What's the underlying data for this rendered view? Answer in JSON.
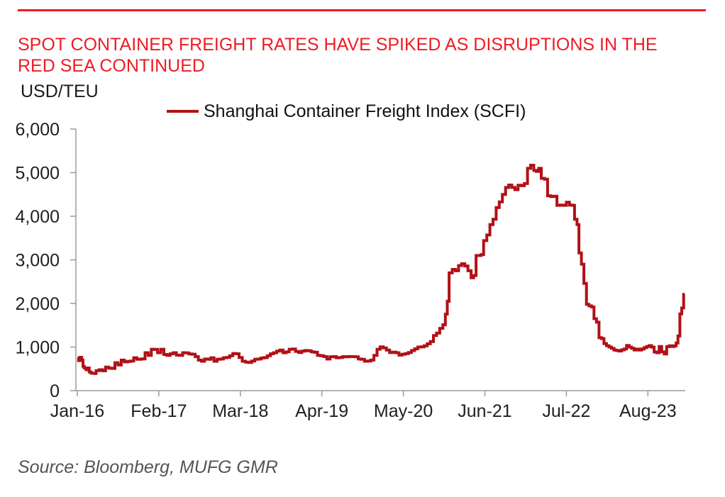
{
  "page": {
    "title": "SPOT CONTAINER FREIGHT RATES HAVE SPIKED AS DISRUPTIONS IN THE RED SEA CONTINUED",
    "unit_label": "USD/TEU",
    "source": "Source: Bloomberg, MUFG GMR",
    "colors": {
      "accent_red": "#ED1C24",
      "line_red": "#B01117",
      "axis_gray": "#9B9B9B",
      "tick_text": "#1F1F1F"
    }
  },
  "legend": {
    "label": "Shanghai Container Freight Index (SCFI)"
  },
  "chart_data": {
    "type": "line",
    "title": "Shanghai Container Freight Index (SCFI)",
    "xlabel": "",
    "ylabel": "USD/TEU",
    "ylim": [
      0,
      6000
    ],
    "grid": false,
    "legend_position": "top",
    "line_style": "step-after",
    "y_ticks": [
      0,
      1000,
      2000,
      3000,
      4000,
      5000,
      6000
    ],
    "y_tick_labels": [
      "0",
      "1,000",
      "2,000",
      "3,000",
      "4,000",
      "5,000",
      "6,000"
    ],
    "x_tick_labels": [
      "Jan-16",
      "Feb-17",
      "Mar-18",
      "Apr-19",
      "May-20",
      "Jun-21",
      "Jul-22",
      "Aug-23"
    ],
    "x_tick_months": [
      0,
      13,
      26,
      39,
      52,
      65,
      78,
      91
    ],
    "x_unit": "months since Jan-2016",
    "x_range_months": [
      0,
      97.5
    ],
    "series": [
      {
        "name": "Shanghai Container Freight Index (SCFI)",
        "points": [
          [
            0,
            745
          ],
          [
            0.2,
            690
          ],
          [
            0.4,
            765
          ],
          [
            0.7,
            700
          ],
          [
            0.9,
            560
          ],
          [
            1.1,
            520
          ],
          [
            1.4,
            480
          ],
          [
            1.7,
            520
          ],
          [
            1.9,
            430
          ],
          [
            2.2,
            400
          ],
          [
            2.7,
            395
          ],
          [
            3,
            460
          ],
          [
            3.5,
            480
          ],
          [
            4,
            455
          ],
          [
            4.5,
            540
          ],
          [
            5,
            515
          ],
          [
            5.5,
            510
          ],
          [
            6,
            640
          ],
          [
            6.5,
            590
          ],
          [
            7,
            700
          ],
          [
            7.5,
            660
          ],
          [
            8,
            670
          ],
          [
            8.5,
            678
          ],
          [
            9,
            755
          ],
          [
            9.5,
            720
          ],
          [
            10.2,
            728
          ],
          [
            10.8,
            870
          ],
          [
            11.3,
            810
          ],
          [
            11.8,
            950
          ],
          [
            12.3,
            945
          ],
          [
            12.8,
            870
          ],
          [
            13.3,
            950
          ],
          [
            13.8,
            830
          ],
          [
            14.3,
            810
          ],
          [
            14.8,
            845
          ],
          [
            15.3,
            870
          ],
          [
            15.8,
            815
          ],
          [
            16.3,
            810
          ],
          [
            16.8,
            870
          ],
          [
            17.3,
            865
          ],
          [
            17.8,
            840
          ],
          [
            18.3,
            835
          ],
          [
            18.8,
            780
          ],
          [
            19.3,
            700
          ],
          [
            19.8,
            675
          ],
          [
            20.3,
            725
          ],
          [
            20.8,
            720
          ],
          [
            21.3,
            755
          ],
          [
            21.8,
            675
          ],
          [
            22.3,
            720
          ],
          [
            22.8,
            725
          ],
          [
            23.3,
            755
          ],
          [
            23.8,
            762
          ],
          [
            24.3,
            800
          ],
          [
            24.8,
            852
          ],
          [
            25.3,
            845
          ],
          [
            25.8,
            760
          ],
          [
            26.3,
            675
          ],
          [
            26.8,
            655
          ],
          [
            27.3,
            645
          ],
          [
            27.8,
            680
          ],
          [
            28.3,
            720
          ],
          [
            28.8,
            726
          ],
          [
            29.3,
            750
          ],
          [
            29.8,
            758
          ],
          [
            30.3,
            800
          ],
          [
            30.8,
            845
          ],
          [
            31.3,
            870
          ],
          [
            31.8,
            905
          ],
          [
            32.3,
            930
          ],
          [
            32.8,
            870
          ],
          [
            33.3,
            890
          ],
          [
            33.8,
            950
          ],
          [
            34.3,
            955
          ],
          [
            34.8,
            900
          ],
          [
            35.3,
            875
          ],
          [
            35.8,
            905
          ],
          [
            36.3,
            920
          ],
          [
            36.8,
            915
          ],
          [
            37.3,
            890
          ],
          [
            37.8,
            880
          ],
          [
            38.3,
            810
          ],
          [
            38.8,
            800
          ],
          [
            39.3,
            780
          ],
          [
            39.8,
            725
          ],
          [
            40.3,
            775
          ],
          [
            40.8,
            780
          ],
          [
            41.3,
            755
          ],
          [
            41.8,
            760
          ],
          [
            42.3,
            780
          ],
          [
            42.8,
            775
          ],
          [
            43.3,
            782
          ],
          [
            43.8,
            780
          ],
          [
            44.3,
            775
          ],
          [
            44.8,
            725
          ],
          [
            45.3,
            720
          ],
          [
            45.8,
            675
          ],
          [
            46.3,
            680
          ],
          [
            46.8,
            700
          ],
          [
            47.3,
            810
          ],
          [
            47.8,
            950
          ],
          [
            48.3,
            1005
          ],
          [
            48.8,
            980
          ],
          [
            49.3,
            930
          ],
          [
            49.8,
            875
          ],
          [
            50.3,
            885
          ],
          [
            50.8,
            870
          ],
          [
            51.3,
            815
          ],
          [
            51.8,
            835
          ],
          [
            52.3,
            850
          ],
          [
            52.8,
            875
          ],
          [
            53.3,
            920
          ],
          [
            53.8,
            960
          ],
          [
            54.3,
            1000
          ],
          [
            54.8,
            1005
          ],
          [
            55.3,
            1030
          ],
          [
            55.8,
            1075
          ],
          [
            56.3,
            1125
          ],
          [
            56.8,
            1265
          ],
          [
            57.3,
            1320
          ],
          [
            57.8,
            1430
          ],
          [
            58.3,
            1510
          ],
          [
            58.7,
            1755
          ],
          [
            59,
            2050
          ],
          [
            59.3,
            2700
          ],
          [
            59.8,
            2780
          ],
          [
            60.3,
            2750
          ],
          [
            60.8,
            2870
          ],
          [
            61.3,
            2910
          ],
          [
            61.8,
            2860
          ],
          [
            62.3,
            2750
          ],
          [
            62.8,
            2590
          ],
          [
            63.2,
            2640
          ],
          [
            63.6,
            3100
          ],
          [
            64.4,
            3120
          ],
          [
            64.8,
            3440
          ],
          [
            65.3,
            3570
          ],
          [
            65.8,
            3810
          ],
          [
            66.3,
            3930
          ],
          [
            66.8,
            4200
          ],
          [
            67.3,
            4330
          ],
          [
            67.8,
            4500
          ],
          [
            68.3,
            4660
          ],
          [
            68.8,
            4715
          ],
          [
            69.3,
            4660
          ],
          [
            69.8,
            4610
          ],
          [
            70.3,
            4710
          ],
          [
            70.8,
            4700
          ],
          [
            71.3,
            4750
          ],
          [
            71.8,
            5100
          ],
          [
            72.3,
            5170
          ],
          [
            72.8,
            5050
          ],
          [
            73.2,
            5030
          ],
          [
            73.6,
            5100
          ],
          [
            74,
            4870
          ],
          [
            74.5,
            4850
          ],
          [
            75,
            4470
          ],
          [
            75.5,
            4450
          ],
          [
            76,
            4460
          ],
          [
            76.5,
            4250
          ],
          [
            77,
            4255
          ],
          [
            77.5,
            4250
          ],
          [
            78,
            4320
          ],
          [
            78.5,
            4255
          ],
          [
            79,
            4250
          ],
          [
            79.3,
            3930
          ],
          [
            79.7,
            3810
          ],
          [
            80,
            3160
          ],
          [
            80.4,
            2900
          ],
          [
            80.8,
            2460
          ],
          [
            81.2,
            1980
          ],
          [
            81.6,
            1945
          ],
          [
            82,
            1920
          ],
          [
            82.4,
            1650
          ],
          [
            82.8,
            1570
          ],
          [
            83.2,
            1215
          ],
          [
            83.6,
            1195
          ],
          [
            84,
            1080
          ],
          [
            84.4,
            1031
          ],
          [
            84.8,
            1000
          ],
          [
            85.2,
            969
          ],
          [
            85.6,
            931
          ],
          [
            86,
            920
          ],
          [
            86.4,
            909
          ],
          [
            86.8,
            935
          ],
          [
            87.2,
            956
          ],
          [
            87.6,
            1037
          ],
          [
            88,
            1000
          ],
          [
            88.4,
            972
          ],
          [
            88.8,
            934
          ],
          [
            89.2,
            953
          ],
          [
            89.6,
            931
          ],
          [
            90,
            955
          ],
          [
            90.4,
            986
          ],
          [
            90.8,
            1013
          ],
          [
            91.2,
            1033
          ],
          [
            91.6,
            999
          ],
          [
            92,
            886
          ],
          [
            92.4,
            870
          ],
          [
            92.8,
            1012
          ],
          [
            93.2,
            890
          ],
          [
            93.6,
            840
          ],
          [
            94,
            1010
          ],
          [
            94.4,
            1030
          ],
          [
            94.8,
            1012
          ],
          [
            95.2,
            1029
          ],
          [
            95.5,
            1093
          ],
          [
            95.8,
            1254
          ],
          [
            96.1,
            1759
          ],
          [
            96.4,
            1896
          ],
          [
            96.7,
            2206
          ],
          [
            96.9,
            2206
          ]
        ]
      }
    ]
  }
}
